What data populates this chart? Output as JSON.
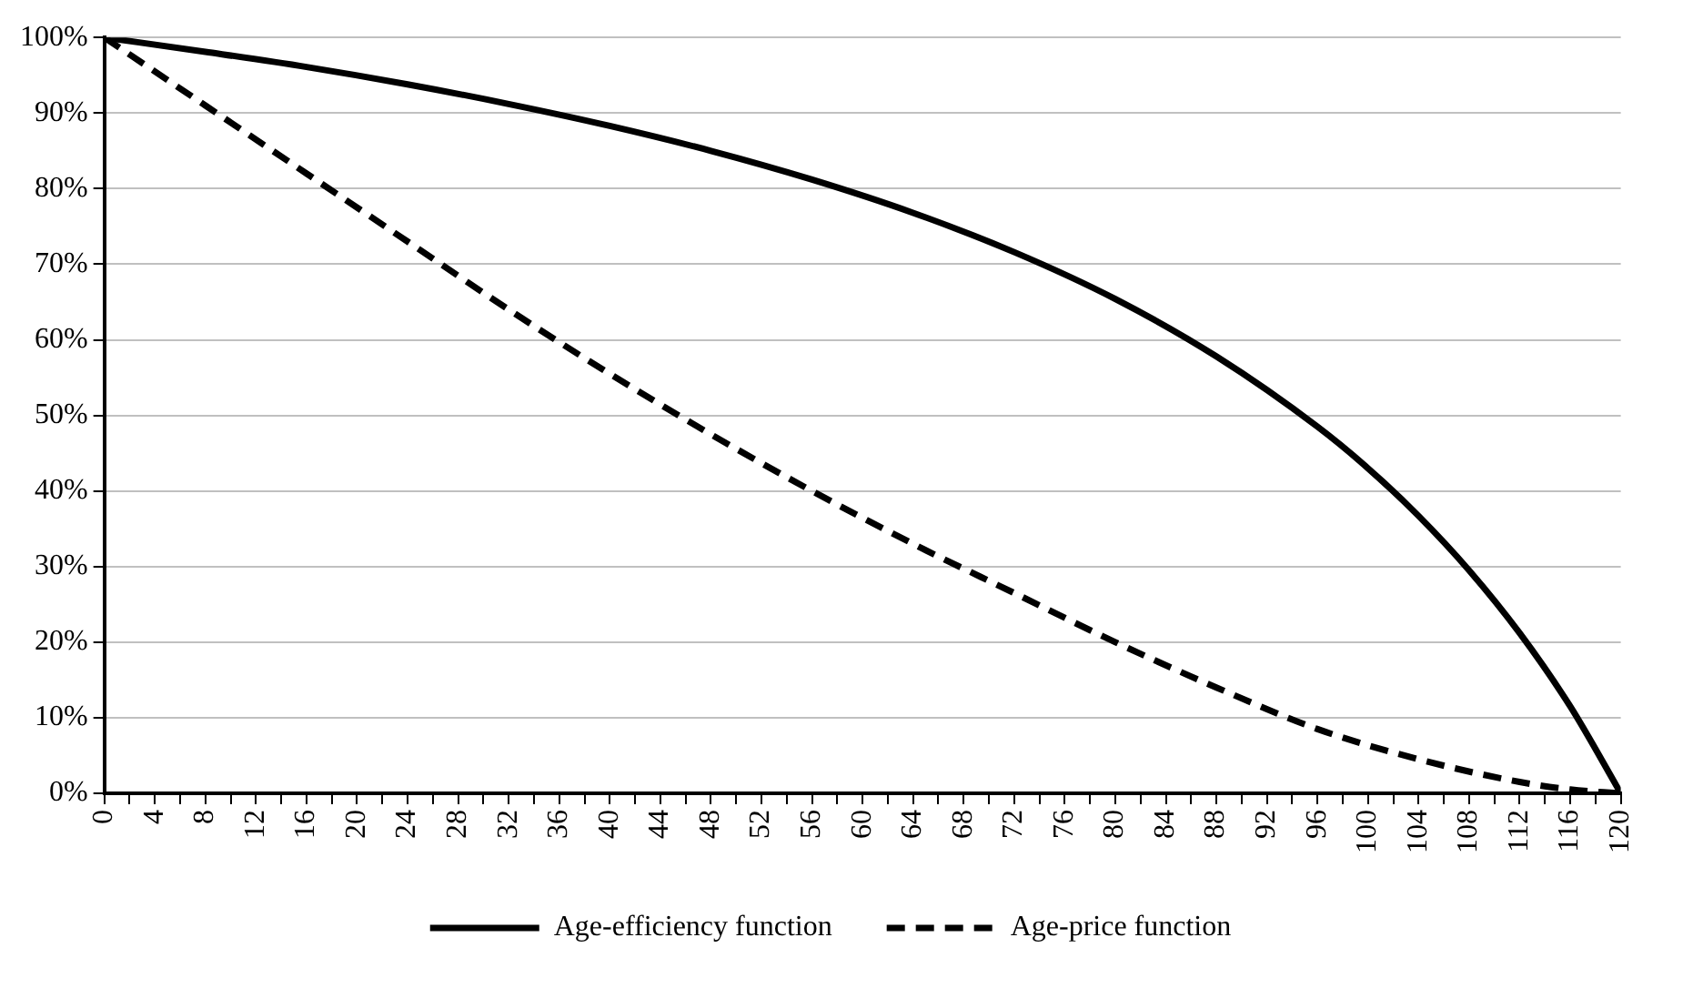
{
  "chart_data": {
    "type": "line",
    "series": [
      {
        "name": "Age-efficiency function",
        "color": "#000000",
        "line_style": "solid",
        "x": [
          0,
          8,
          16,
          24,
          32,
          40,
          48,
          56,
          64,
          72,
          80,
          88,
          96,
          100,
          104,
          108,
          112,
          116,
          120
        ],
        "values": [
          100,
          98.1,
          96.1,
          93.8,
          91.2,
          88.3,
          85.0,
          81.2,
          76.8,
          71.6,
          65.4,
          57.8,
          48.5,
          43.0,
          36.7,
          29.5,
          21.2,
          11.5,
          0
        ]
      },
      {
        "name": "Age-price function",
        "color": "#000000",
        "line_style": "dashed",
        "x": [
          0,
          8,
          16,
          24,
          32,
          40,
          48,
          56,
          64,
          72,
          80,
          88,
          96,
          104,
          112,
          116,
          120
        ],
        "values": [
          100,
          91,
          82,
          73,
          64,
          55.5,
          47.5,
          40,
          33,
          26.5,
          20,
          14,
          8.5,
          4.5,
          1.5,
          0.5,
          0
        ]
      }
    ],
    "xlim": [
      0,
      120
    ],
    "xticks": [
      0,
      {
        "value": 2,
        "label": null
      },
      4,
      {
        "value": 6,
        "label": null
      },
      8,
      {
        "value": 10,
        "label": null
      },
      12,
      {
        "value": 14,
        "label": null
      },
      16,
      {
        "value": 18,
        "label": null
      },
      20,
      {
        "value": 22,
        "label": null
      },
      24,
      {
        "value": 26,
        "label": null
      },
      28,
      {
        "value": 30,
        "label": null
      },
      32,
      {
        "value": 34,
        "label": null
      },
      36,
      {
        "value": 38,
        "label": null
      },
      40,
      {
        "value": 42,
        "label": null
      },
      44,
      {
        "value": 46,
        "label": null
      },
      48,
      {
        "value": 50,
        "label": null
      },
      52,
      {
        "value": 54,
        "label": null
      },
      56,
      {
        "value": 58,
        "label": null
      },
      60,
      {
        "value": 62,
        "label": null
      },
      64,
      {
        "value": 66,
        "label": null
      },
      68,
      {
        "value": 70,
        "label": null
      },
      72,
      {
        "value": 74,
        "label": null
      },
      76,
      {
        "value": 78,
        "label": null
      },
      80,
      {
        "value": 82,
        "label": null
      },
      84,
      {
        "value": 86,
        "label": null
      },
      88,
      {
        "value": 90,
        "label": null
      },
      92,
      {
        "value": 94,
        "label": null
      },
      96,
      {
        "value": 98,
        "label": null
      },
      100,
      {
        "value": 102,
        "label": null
      },
      104,
      {
        "value": 106,
        "label": null
      },
      108,
      {
        "value": 110,
        "label": null
      },
      112,
      {
        "value": 114,
        "label": null
      },
      116,
      {
        "value": 118,
        "label": null
      },
      120
    ],
    "ylim": [
      0,
      100
    ],
    "yticks": [
      {
        "value": 0,
        "label": "0%"
      },
      {
        "value": 10,
        "label": "10%"
      },
      {
        "value": 20,
        "label": "20%"
      },
      {
        "value": 30,
        "label": "30%"
      },
      {
        "value": 40,
        "label": "40%"
      },
      {
        "value": 50,
        "label": "50%"
      },
      {
        "value": 60,
        "label": "60%"
      },
      {
        "value": 70,
        "label": "70%"
      },
      {
        "value": 80,
        "label": "80%"
      },
      {
        "value": 90,
        "label": "90%"
      },
      {
        "value": 100,
        "label": "100%"
      }
    ],
    "grid": "y",
    "legend": "bottom"
  }
}
